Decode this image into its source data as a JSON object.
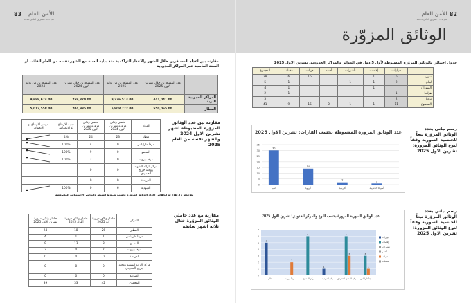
{
  "header": {
    "right_page": {
      "page_number": "82",
      "magazine": "الأمن العام",
      "issue": "عدد ١٤٧ - تشرين الثاني 2025"
    },
    "left_page": {
      "page_number": "83",
      "magazine": "الأمن العام",
      "issue": "عدد ١٤٧ - تشرين الثاني 2025"
    },
    "title": "الوثائق المزوّرة"
  },
  "travellers": {
    "caption": "مقارنة بين اعداد المسافرين خلال الشهر والاعداد التراكمية منذ بداية السنة مع الشهر نفسه من العام الفائت او السنة الماضية عبر المراكز الحدودية",
    "headers": [
      "",
      "عدد المسافرين خلال تشرين الأول 2025",
      "عدد المسافرين من بداية 2025",
      "عدد المسافرين خلال تشرين الأول 2024",
      "عدد المسافرين من بداية 2024"
    ],
    "rows": [
      [
        "المراكز الحدودية البرية",
        "441,041.00",
        "9,276,513.00",
        "259,879.00",
        "9,689,674.00"
      ],
      [
        "المطار",
        "550,065.00",
        "5,908,772.00",
        "204,935.00",
        "5,012,558.00"
      ]
    ]
  },
  "totals": {
    "caption": "جدول اجمالي بالوثائق المزوّرة المضبوطة لأول 5 دول في الدوائر والمراكز الحدودية: تشرين الاول 2025",
    "headers": [
      "",
      "جوازات",
      "إقامات",
      "تأشيرات",
      "أختام",
      "هويات",
      "مختلف",
      "المجموع"
    ],
    "rows": [
      [
        "سوريا",
        "6",
        "1",
        "",
        "",
        "15",
        "6",
        "28"
      ],
      [
        "لبنان",
        "2",
        "1",
        "1",
        "",
        "",
        "1",
        "5"
      ],
      [
        "السودان",
        "",
        "1",
        "",
        "",
        "",
        "1",
        "4"
      ],
      [
        "هولندا",
        "1",
        "",
        "",
        "",
        "",
        "1",
        "2"
      ],
      [
        "تركيا",
        "2",
        "",
        "",
        "",
        "",
        "",
        "3"
      ],
      [
        "المجموع",
        "11",
        "1",
        "1",
        "0",
        "15",
        "9",
        "41"
      ]
    ]
  },
  "compare_year": {
    "caption": "مقارنة بين عدد الوثائق المزوّرة المضبوطة لشهر تشرين الاول 2024 والشهر نفسه من العام 2025",
    "headers": [
      "المركز",
      "حاملي وثائق مزورة تشرين الأول 2024",
      "حاملي وثائق مزورة تشرين الأول 2025",
      "نسبة الارتفاع أو الانخفاض",
      "مؤشر الارتفاع أو الانخفاض"
    ],
    "rows": [
      {
        "cells": [
          "مطار",
          "23",
          "24",
          "4%"
        ],
        "trend": "up"
      },
      {
        "cells": [
          "مرفأ طرابلس",
          "0",
          "4",
          "100%"
        ],
        "trend": "down"
      },
      {
        "cells": [
          "المصنع",
          "0",
          "9",
          "100%"
        ],
        "trend": "down"
      },
      {
        "cells": [
          "مرفأ بيروت",
          "0",
          "2",
          "100%"
        ],
        "trend": "down"
      },
      {
        "cells": [
          "مركز الرائد الشهيد روجيه جريج الحدودي",
          "0",
          "0",
          ""
        ],
        "trend": ""
      },
      {
        "cells": [
          "العريضة",
          "0",
          "0",
          ""
        ],
        "trend": ""
      },
      {
        "cells": [
          "العبودية",
          "6",
          "0",
          "100%"
        ],
        "trend": "up"
      }
    ],
    "note": "ملاحظة : ارتفاع او انخفاض اعداد الوثائق المزورة بحسب شروط الضبط والتدابير الاستثنائية المفروضة"
  },
  "compare_months": {
    "caption": "مقارنة مع عدد حاملي الوثائق المزوّرة خلال ثلاثة اشهر سابقة",
    "headers": [
      "المركز",
      "حاملو وثائق مزورة آب 2025",
      "حاملو وثائق مزورة أيلول 2025",
      "حاملو وثائق مزورة تشرين الأول 2025"
    ],
    "rows": [
      [
        "المطار",
        "26",
        "18",
        "24"
      ],
      [
        "مرفأ طرابلس",
        "1",
        "1",
        "4"
      ],
      [
        "المصنع",
        "8",
        "13",
        "9"
      ],
      [
        "مرفأ بيروت",
        "7",
        "0",
        "2"
      ],
      [
        "العريضة",
        "0",
        "0",
        "0"
      ],
      [
        "مركز الرائد الشهيد روجيه جريج الحدودي",
        "0",
        "0",
        "0"
      ],
      [
        "العبودية",
        "0",
        "0",
        "0"
      ],
      [
        "المجموع",
        "42",
        "33",
        "39"
      ]
    ]
  },
  "chart_caption_1": "رسم بياني بعدد الوثائق المزوّرة تبعاً للجنسية السورية وفقاً لنوع الوثائق المزورة: تشرين الاول 2025",
  "chart_caption_2": "رسم بياني بعدد الوثائق المزوّرة تبعاً للجنسية السورية وفقاً لنوع الوثائق المزورة: تشرين الاول 2025",
  "chart_data": [
    {
      "type": "bar",
      "title": "عدد الوثائق المزورة المضبوطة بحسب القارات: تشرين الاول 2025",
      "categories": [
        "آسيا",
        "أوروبا",
        "أفريقيا",
        "أميركا الجنوبية"
      ],
      "values": [
        30,
        14,
        2,
        1
      ],
      "ylim": [
        0,
        35
      ],
      "yticks": [
        0,
        5,
        10,
        15,
        20,
        25,
        30,
        35
      ],
      "grid": true,
      "color": "#4472c4"
    },
    {
      "type": "bar",
      "title": "عدد الوثائق السورية المزورة بحسب النوع والمركز الحدودي: تشرين الاول 2025",
      "categories": [
        "مطار",
        "مرفأ بيروت",
        "مركز المصنع",
        "مركز العبودية",
        "مركز المصنع الحدودي",
        "مرفأ طرابلس"
      ],
      "series": [
        {
          "name": "جوازات",
          "color": "#2e5597",
          "values": [
            5,
            0,
            0,
            1,
            0,
            0
          ]
        },
        {
          "name": "إقامات",
          "color": "#2e8b9a",
          "values": [
            0,
            0,
            6,
            0,
            6,
            3
          ]
        },
        {
          "name": "هويات",
          "color": "#e07b39",
          "values": [
            0,
            2,
            0,
            0,
            3,
            1
          ]
        }
      ],
      "legend": [
        "جوازات",
        "إقامات",
        "تأشيرات",
        "أختام",
        "هويات",
        "مختلف"
      ],
      "legend_placement": "right",
      "ylim": [
        0,
        7
      ],
      "yticks": [
        0,
        1,
        2,
        3,
        4,
        5,
        6,
        7
      ],
      "grid": true
    }
  ]
}
